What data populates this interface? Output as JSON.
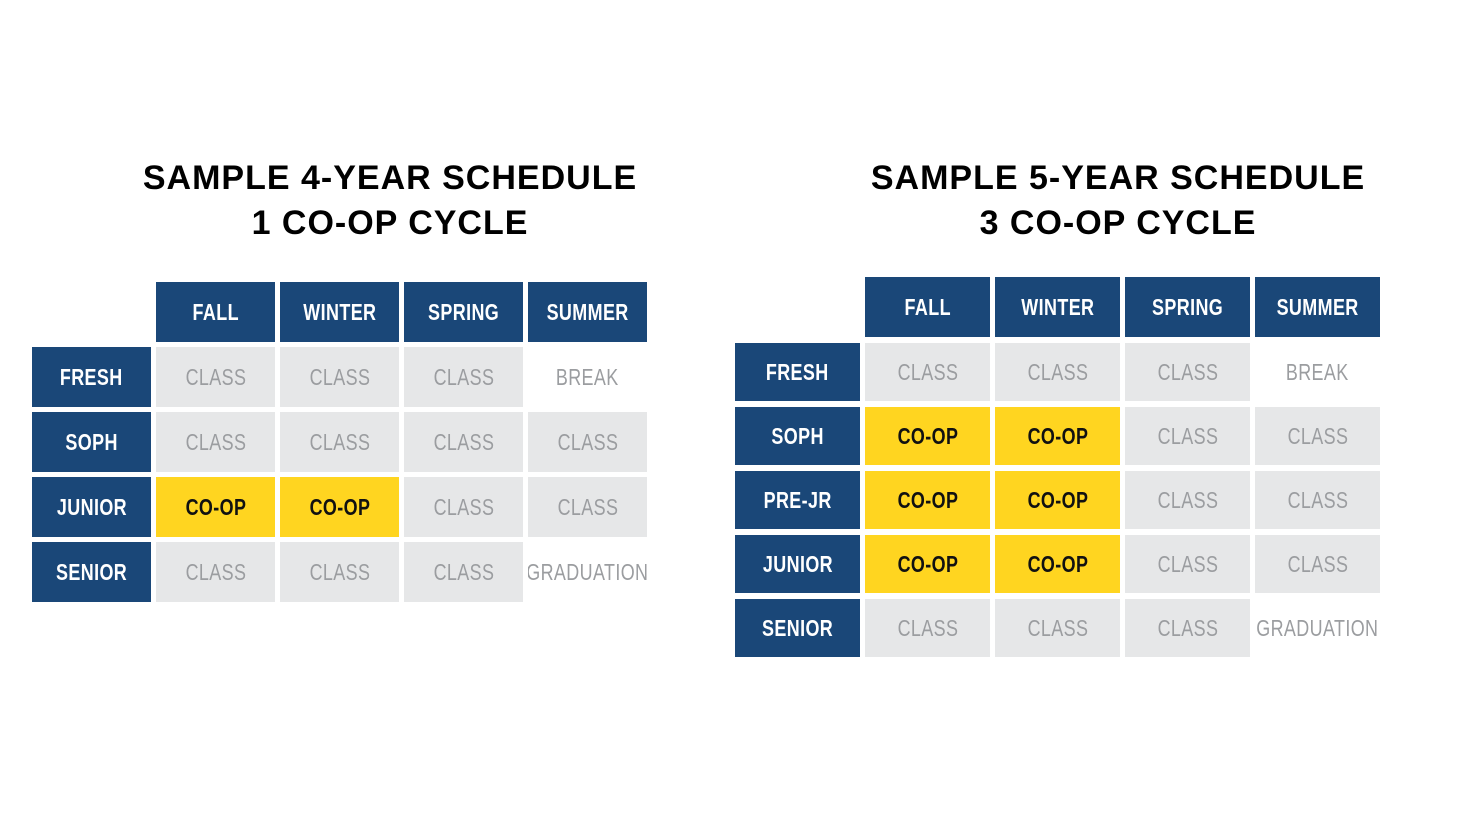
{
  "page": {
    "background": "#FFFFFF"
  },
  "colors": {
    "navy": "#1A4778",
    "yellow": "#FFD520",
    "gray_bg": "#E6E7E8",
    "gray_text": "#9B9DA0",
    "coop_text": "#111111",
    "header_text": "#FFFFFF",
    "title_text": "#000000"
  },
  "tables": [
    {
      "id": "four-year",
      "title_line1": "SAMPLE 4-YEAR SCHEDULE",
      "title_line2": "1 CO-OP CYCLE",
      "columns": [
        "FALL",
        "WINTER",
        "SPRING",
        "SUMMER"
      ],
      "rows": [
        {
          "label": "FRESH",
          "cells": [
            {
              "text": "CLASS",
              "type": "class"
            },
            {
              "text": "CLASS",
              "type": "class"
            },
            {
              "text": "CLASS",
              "type": "class"
            },
            {
              "text": "BREAK",
              "type": "plain"
            }
          ]
        },
        {
          "label": "SOPH",
          "cells": [
            {
              "text": "CLASS",
              "type": "class"
            },
            {
              "text": "CLASS",
              "type": "class"
            },
            {
              "text": "CLASS",
              "type": "class"
            },
            {
              "text": "CLASS",
              "type": "class"
            }
          ]
        },
        {
          "label": "JUNIOR",
          "cells": [
            {
              "text": "CO-OP",
              "type": "coop"
            },
            {
              "text": "CO-OP",
              "type": "coop"
            },
            {
              "text": "CLASS",
              "type": "class"
            },
            {
              "text": "CLASS",
              "type": "class"
            }
          ]
        },
        {
          "label": "SENIOR",
          "cells": [
            {
              "text": "CLASS",
              "type": "class"
            },
            {
              "text": "CLASS",
              "type": "class"
            },
            {
              "text": "CLASS",
              "type": "class"
            },
            {
              "text": "GRADUATION",
              "type": "plain"
            }
          ]
        }
      ]
    },
    {
      "id": "five-year",
      "title_line1": "SAMPLE 5-YEAR SCHEDULE",
      "title_line2": "3 CO-OP CYCLE",
      "columns": [
        "FALL",
        "WINTER",
        "SPRING",
        "SUMMER"
      ],
      "rows": [
        {
          "label": "FRESH",
          "cells": [
            {
              "text": "CLASS",
              "type": "class"
            },
            {
              "text": "CLASS",
              "type": "class"
            },
            {
              "text": "CLASS",
              "type": "class"
            },
            {
              "text": "BREAK",
              "type": "plain"
            }
          ]
        },
        {
          "label": "SOPH",
          "cells": [
            {
              "text": "CO-OP",
              "type": "coop"
            },
            {
              "text": "CO-OP",
              "type": "coop"
            },
            {
              "text": "CLASS",
              "type": "class"
            },
            {
              "text": "CLASS",
              "type": "class"
            }
          ]
        },
        {
          "label": "PRE-JR",
          "cells": [
            {
              "text": "CO-OP",
              "type": "coop"
            },
            {
              "text": "CO-OP",
              "type": "coop"
            },
            {
              "text": "CLASS",
              "type": "class"
            },
            {
              "text": "CLASS",
              "type": "class"
            }
          ]
        },
        {
          "label": "JUNIOR",
          "cells": [
            {
              "text": "CO-OP",
              "type": "coop"
            },
            {
              "text": "CO-OP",
              "type": "coop"
            },
            {
              "text": "CLASS",
              "type": "class"
            },
            {
              "text": "CLASS",
              "type": "class"
            }
          ]
        },
        {
          "label": "SENIOR",
          "cells": [
            {
              "text": "CLASS",
              "type": "class"
            },
            {
              "text": "CLASS",
              "type": "class"
            },
            {
              "text": "CLASS",
              "type": "class"
            },
            {
              "text": "GRADUATION",
              "type": "plain"
            }
          ]
        }
      ]
    }
  ]
}
